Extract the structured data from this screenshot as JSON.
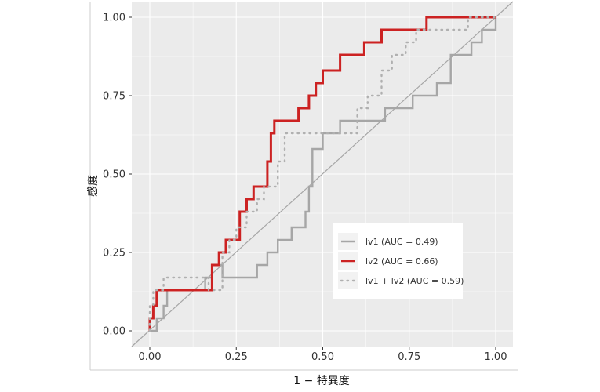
{
  "chart_data": {
    "type": "line",
    "xlabel": "1 − 特異度",
    "ylabel": "感度",
    "xlim": [
      0,
      1
    ],
    "ylim": [
      0,
      1
    ],
    "xticks": [
      "0.00",
      "0.25",
      "0.50",
      "0.75",
      "1.00"
    ],
    "yticks": [
      "0.00",
      "0.25",
      "0.50",
      "0.75",
      "1.00"
    ],
    "grid": true,
    "legend_position": "bottom-right",
    "series": [
      {
        "name": "lv1 (AUC = 0.49)",
        "color": "#a6a6a6",
        "style": "solid",
        "x": [
          0,
          0.02,
          0.02,
          0.04,
          0.04,
          0.05,
          0.05,
          0.16,
          0.16,
          0.18,
          0.18,
          0.21,
          0.21,
          0.31,
          0.31,
          0.34,
          0.34,
          0.37,
          0.37,
          0.41,
          0.41,
          0.45,
          0.45,
          0.46,
          0.46,
          0.47,
          0.47,
          0.5,
          0.5,
          0.55,
          0.55,
          0.68,
          0.68,
          0.76,
          0.76,
          0.83,
          0.83,
          0.87,
          0.87,
          0.93,
          0.93,
          0.96,
          0.96,
          1.0,
          1.0
        ],
        "y": [
          0,
          0,
          0.04,
          0.04,
          0.08,
          0.08,
          0.13,
          0.13,
          0.17,
          0.17,
          0.21,
          0.21,
          0.17,
          0.17,
          0.21,
          0.21,
          0.25,
          0.25,
          0.29,
          0.29,
          0.33,
          0.33,
          0.38,
          0.38,
          0.46,
          0.46,
          0.58,
          0.58,
          0.63,
          0.63,
          0.67,
          0.67,
          0.71,
          0.71,
          0.75,
          0.75,
          0.79,
          0.79,
          0.88,
          0.88,
          0.92,
          0.92,
          0.96,
          0.96,
          1.0
        ]
      },
      {
        "name": "lv2 (AUC = 0.66)",
        "color": "#cc2222",
        "style": "solid",
        "x": [
          0,
          0,
          0.01,
          0.01,
          0.02,
          0.02,
          0.18,
          0.18,
          0.2,
          0.2,
          0.22,
          0.22,
          0.26,
          0.26,
          0.28,
          0.28,
          0.3,
          0.3,
          0.34,
          0.34,
          0.35,
          0.35,
          0.36,
          0.36,
          0.43,
          0.43,
          0.46,
          0.46,
          0.48,
          0.48,
          0.5,
          0.5,
          0.55,
          0.55,
          0.62,
          0.62,
          0.67,
          0.67,
          0.8,
          0.8,
          1.0
        ],
        "y": [
          0,
          0.04,
          0.04,
          0.08,
          0.08,
          0.13,
          0.13,
          0.21,
          0.21,
          0.25,
          0.25,
          0.29,
          0.29,
          0.38,
          0.38,
          0.42,
          0.42,
          0.46,
          0.46,
          0.54,
          0.54,
          0.63,
          0.63,
          0.67,
          0.67,
          0.71,
          0.71,
          0.75,
          0.75,
          0.79,
          0.79,
          0.83,
          0.83,
          0.88,
          0.88,
          0.92,
          0.92,
          0.96,
          0.96,
          1.0,
          1.0
        ]
      },
      {
        "name": "lv1 + lv2 (AUC = 0.59)",
        "color": "#b0b0b0",
        "style": "dotted",
        "x": [
          0,
          0,
          0.01,
          0.01,
          0.04,
          0.04,
          0.17,
          0.17,
          0.21,
          0.21,
          0.23,
          0.23,
          0.25,
          0.25,
          0.28,
          0.28,
          0.31,
          0.31,
          0.33,
          0.33,
          0.37,
          0.37,
          0.39,
          0.39,
          0.44,
          0.44,
          0.6,
          0.6,
          0.63,
          0.63,
          0.67,
          0.67,
          0.7,
          0.7,
          0.74,
          0.74,
          0.77,
          0.77,
          0.8,
          0.8,
          0.92,
          0.92,
          1.0,
          1.0
        ],
        "y": [
          0,
          0.08,
          0.08,
          0.13,
          0.13,
          0.17,
          0.17,
          0.13,
          0.13,
          0.25,
          0.25,
          0.29,
          0.29,
          0.33,
          0.33,
          0.38,
          0.38,
          0.42,
          0.42,
          0.46,
          0.46,
          0.54,
          0.54,
          0.63,
          0.63,
          0.63,
          0.63,
          0.71,
          0.71,
          0.75,
          0.75,
          0.83,
          0.83,
          0.88,
          0.88,
          0.92,
          0.92,
          0.96,
          0.96,
          0.96,
          0.96,
          1.0,
          1.0,
          1.0
        ]
      }
    ],
    "reference_line": {
      "x": [
        0,
        1
      ],
      "y": [
        0,
        1
      ],
      "color": "#a6a6a6"
    }
  }
}
